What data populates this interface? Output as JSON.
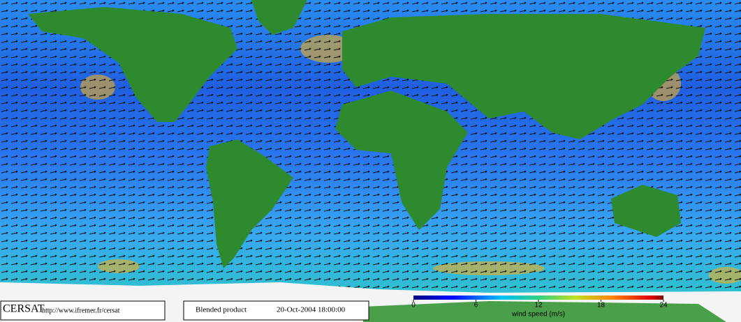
{
  "credit": {
    "name": "CERSAT",
    "url": "http://www.ifremer.fr/cersat"
  },
  "product": {
    "label": "Blended product",
    "date": "20-Oct-2004 18:00:00"
  },
  "colorbar": {
    "label": "wind speed (m/s)",
    "lim": [
      0,
      24
    ],
    "ticks": [
      0,
      6,
      12,
      18,
      24
    ]
  }
}
